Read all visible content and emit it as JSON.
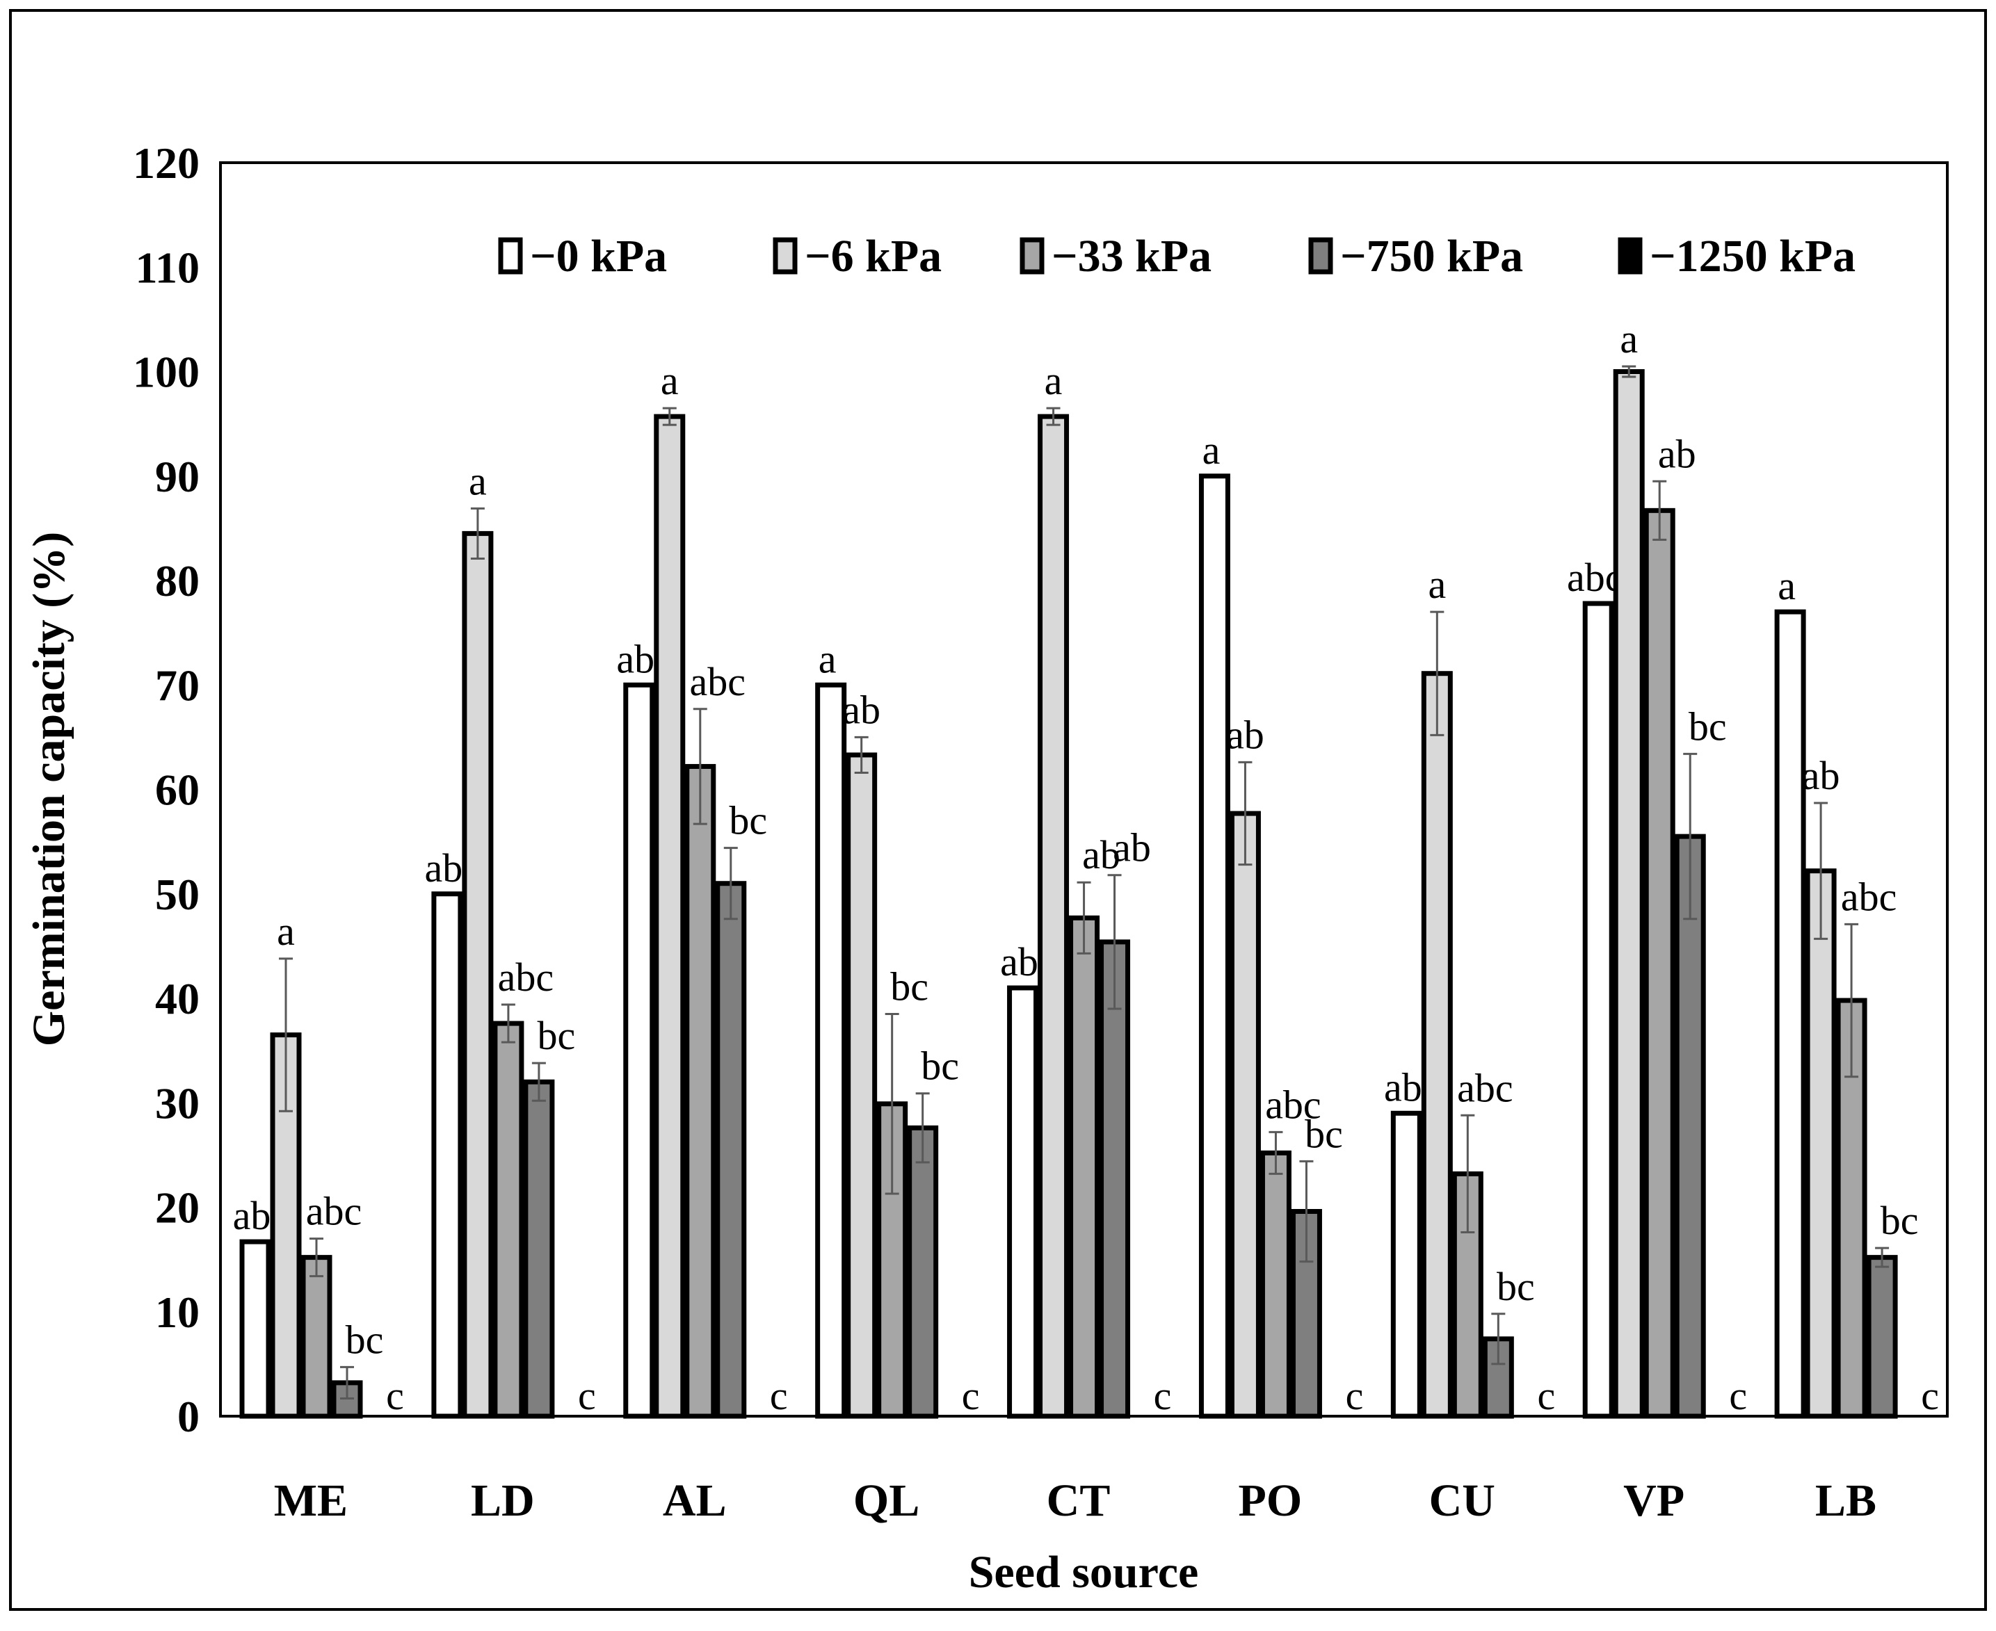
{
  "chart_data": {
    "type": "bar",
    "xlabel": "Seed source",
    "ylabel": "Germination capacity (%)",
    "ylim": [
      0,
      120
    ],
    "yticks": [
      0,
      10,
      20,
      30,
      40,
      50,
      60,
      70,
      80,
      90,
      100,
      110,
      120
    ],
    "grid": false,
    "legend_position": "top-right",
    "categories": [
      "ME",
      "LD",
      "AL",
      "QL",
      "CT",
      "PO",
      "CU",
      "VP",
      "LB"
    ],
    "series": [
      {
        "name": "−0 kPa",
        "color": "#ffffff",
        "values": [
          16.7,
          50,
          70,
          70,
          41,
          90,
          29,
          77.8,
          77
        ],
        "errors": [
          0,
          0,
          0,
          0,
          0,
          0,
          0,
          0,
          0
        ],
        "letters": [
          "ab",
          "ab",
          "ab",
          "a",
          "ab",
          "a",
          "ab",
          "abc",
          "a"
        ]
      },
      {
        "name": "−6 kPa",
        "color": "#d9d9d9",
        "values": [
          36.5,
          84.5,
          95.7,
          63.3,
          95.7,
          57.7,
          71.1,
          100,
          52.2
        ],
        "errors": [
          7.3,
          2.4,
          0.8,
          1.7,
          0.8,
          4.9,
          5.9,
          0.5,
          6.5
        ],
        "letters": [
          "a",
          "a",
          "a",
          "ab",
          "a",
          "ab",
          "a",
          "a",
          "ab"
        ]
      },
      {
        "name": "−33 kPa",
        "color": "#a6a6a6",
        "values": [
          15.2,
          37.6,
          62.2,
          29.9,
          47.7,
          25.2,
          23.2,
          86.7,
          39.8
        ],
        "errors": [
          1.8,
          1.8,
          5.5,
          8.6,
          3.4,
          2.0,
          5.6,
          2.8,
          7.3
        ],
        "letters": [
          "abc",
          "abc",
          "abc",
          "bc",
          "ab",
          "abc",
          "abc",
          "ab",
          "abc"
        ]
      },
      {
        "name": "−750 kPa",
        "color": "#7f7f7f",
        "values": [
          3.2,
          32,
          51,
          27.6,
          45.4,
          19.6,
          7.4,
          55.5,
          15.2
        ],
        "errors": [
          1.5,
          1.8,
          3.4,
          3.3,
          6.4,
          4.8,
          2.4,
          7.9,
          0.9
        ],
        "letters": [
          "bc",
          "bc",
          "bc",
          "bc",
          "ab",
          "bc",
          "bc",
          "bc",
          "bc"
        ]
      },
      {
        "name": "−1250 kPa",
        "color": "#000000",
        "values": [
          0,
          0,
          0,
          0,
          0,
          0,
          0,
          0,
          0
        ],
        "errors": [
          0,
          0,
          0,
          0,
          0,
          0,
          0,
          0,
          0
        ],
        "letters": [
          "c",
          "c",
          "c",
          "c",
          "c",
          "c",
          "c",
          "c",
          "c"
        ]
      }
    ]
  }
}
